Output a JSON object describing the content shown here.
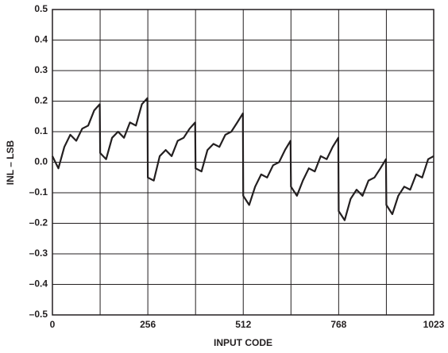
{
  "chart_data": {
    "type": "line",
    "xlabel": "INPUT CODE",
    "ylabel": "INL – LSB",
    "x": [
      0,
      16,
      32,
      48,
      64,
      80,
      96,
      112,
      127,
      128,
      144,
      160,
      176,
      192,
      208,
      224,
      240,
      255,
      256,
      272,
      288,
      304,
      320,
      336,
      352,
      368,
      383,
      384,
      400,
      416,
      432,
      448,
      464,
      480,
      496,
      511,
      512,
      528,
      544,
      560,
      576,
      592,
      608,
      624,
      639,
      640,
      656,
      672,
      688,
      704,
      720,
      736,
      752,
      767,
      768,
      784,
      800,
      816,
      832,
      848,
      864,
      880,
      895,
      896,
      912,
      928,
      944,
      960,
      976,
      992,
      1008,
      1023
    ],
    "series": [
      {
        "color": "#231f20",
        "values": [
          0.02,
          -0.02,
          0.05,
          0.09,
          0.07,
          0.11,
          0.12,
          0.17,
          0.19,
          0.03,
          0.01,
          0.08,
          0.1,
          0.08,
          0.13,
          0.12,
          0.19,
          0.21,
          -0.05,
          -0.06,
          0.02,
          0.04,
          0.02,
          0.07,
          0.08,
          0.11,
          0.13,
          -0.02,
          -0.03,
          0.04,
          0.06,
          0.05,
          0.09,
          0.1,
          0.13,
          0.16,
          -0.11,
          -0.14,
          -0.08,
          -0.04,
          -0.05,
          -0.01,
          0.0,
          0.04,
          0.07,
          -0.08,
          -0.11,
          -0.06,
          -0.02,
          -0.03,
          0.02,
          0.01,
          0.05,
          0.08,
          -0.16,
          -0.19,
          -0.12,
          -0.09,
          -0.11,
          -0.06,
          -0.05,
          -0.02,
          0.01,
          -0.14,
          -0.17,
          -0.11,
          -0.08,
          -0.09,
          -0.04,
          -0.05,
          0.01,
          0.02
        ]
      }
    ],
    "xlim": [
      0,
      1023
    ],
    "xticks": [
      0,
      256,
      512,
      768,
      1023
    ],
    "xgrid": [
      128,
      384,
      640,
      896
    ],
    "ylim": [
      -0.5,
      0.5
    ],
    "yticks": [
      {
        "value": -0.5,
        "label": "–0.5"
      },
      {
        "value": -0.4,
        "label": "–0.4"
      },
      {
        "value": -0.3,
        "label": "–0.3"
      },
      {
        "value": -0.2,
        "label": "–0.2"
      },
      {
        "value": -0.1,
        "label": "–0.1"
      },
      {
        "value": 0,
        "label": "0.0"
      },
      0.1,
      0.2,
      0.3,
      0.4,
      0.5
    ],
    "grid": true
  }
}
